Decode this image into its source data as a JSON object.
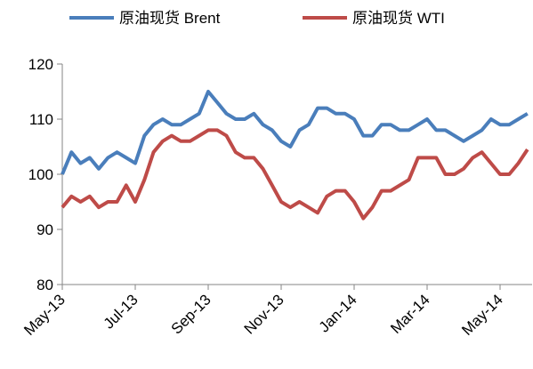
{
  "chart_data": {
    "type": "line",
    "categories": [
      "May-13",
      null,
      null,
      null,
      null,
      null,
      null,
      null,
      "Jul-13",
      null,
      null,
      null,
      null,
      null,
      null,
      null,
      "Sep-13",
      null,
      null,
      null,
      null,
      null,
      null,
      null,
      "Nov-13",
      null,
      null,
      null,
      null,
      null,
      null,
      null,
      "Jan-14",
      null,
      null,
      null,
      null,
      null,
      null,
      null,
      "Mar-14",
      null,
      null,
      null,
      null,
      null,
      null,
      null,
      "May-14",
      null,
      null,
      null
    ],
    "series": [
      {
        "name": "原油现货 Brent",
        "color": "#4a7ebb",
        "values": [
          100,
          104,
          102,
          103,
          101,
          103,
          104,
          103,
          102,
          107,
          109,
          110,
          109,
          109,
          110,
          111,
          115,
          113,
          111,
          110,
          110,
          111,
          109,
          108,
          106,
          105,
          108,
          109,
          112,
          112,
          111,
          111,
          110,
          107,
          107,
          109,
          109,
          108,
          108,
          109,
          110,
          108,
          108,
          107,
          106,
          107,
          108,
          110,
          109,
          109,
          110,
          111
        ]
      },
      {
        "name": "原油现货 WTI",
        "color": "#be4b48",
        "values": [
          94,
          96,
          95,
          96,
          94,
          95,
          95,
          98,
          95,
          99,
          104,
          106,
          107,
          106,
          106,
          107,
          108,
          108,
          107,
          104,
          103,
          103,
          101,
          98,
          95,
          94,
          95,
          94,
          93,
          96,
          97,
          97,
          95,
          92,
          94,
          97,
          97,
          98,
          99,
          103,
          103,
          103,
          100,
          100,
          101,
          103,
          104,
          102,
          100,
          100,
          102,
          104.5
        ]
      }
    ],
    "ylim": [
      80,
      120
    ],
    "yticks": [
      80,
      90,
      100,
      110,
      120
    ],
    "grid": false,
    "legend": "top"
  }
}
